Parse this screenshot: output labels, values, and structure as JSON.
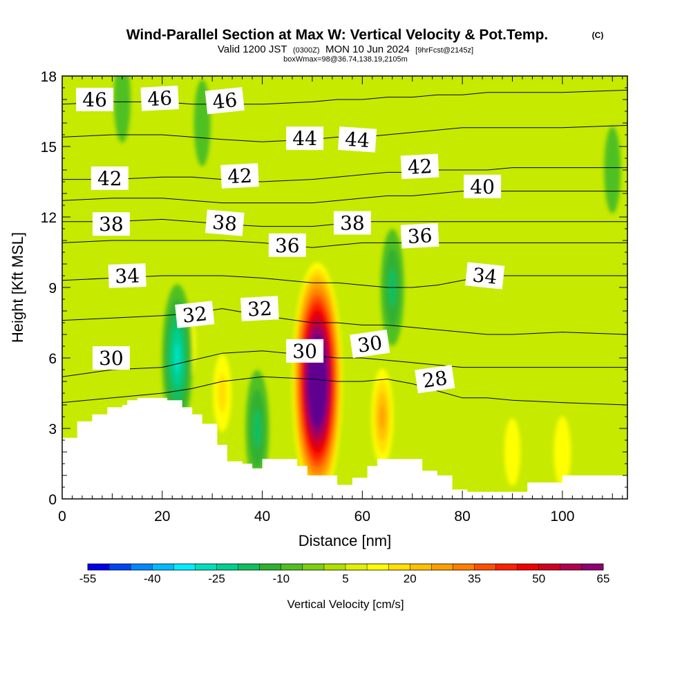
{
  "chart_data": {
    "type": "heatmap",
    "title": "Wind-Parallel Section at Max W: Vertical Velocity & Pot.Temp.",
    "copyright": "(C)",
    "subtitle": {
      "valid": "Valid 1200 JST",
      "utc": "(0300Z)",
      "date": "MON 10 Jun 2024",
      "forecast": "[9hrFcst@2145z]"
    },
    "box_info": "boxWmax=98@36.74,138.19,2105m",
    "xlabel": "Distance [nm]",
    "ylabel": "Height [Kft MSL]",
    "xlim": [
      0,
      113
    ],
    "ylim": [
      0,
      18
    ],
    "x_ticks": [
      "0",
      "20",
      "40",
      "60",
      "80",
      "100"
    ],
    "y_ticks": [
      "0",
      "3",
      "6",
      "9",
      "12",
      "15",
      "18"
    ],
    "colorbar": {
      "title": "Vertical Velocity [cm/s]",
      "tick_labels": [
        "-55",
        "-40",
        "-25",
        "-10",
        "5",
        "20",
        "35",
        "50",
        "65"
      ],
      "levels": [
        -55,
        -50,
        -45,
        -40,
        -35,
        -30,
        -25,
        -20,
        -15,
        -10,
        -5,
        0,
        5,
        10,
        15,
        20,
        25,
        30,
        35,
        40,
        45,
        50,
        55,
        60,
        65
      ],
      "colors": [
        "#0000e8",
        "#0044f5",
        "#0088ff",
        "#00bbff",
        "#00eeff",
        "#00e0c0",
        "#00d090",
        "#10c060",
        "#30b030",
        "#50c020",
        "#80d010",
        "#b0e000",
        "#e0f000",
        "#ffff00",
        "#ffe000",
        "#ffc000",
        "#ffa000",
        "#ff8000",
        "#ff5000",
        "#ff2000",
        "#f00000",
        "#d00020",
        "#b00050",
        "#900070",
        "#600090"
      ]
    },
    "vertical_velocity_features": [
      {
        "x": 51,
        "y": 5.0,
        "w_max": 98,
        "sign": "updraft"
      },
      {
        "x": 64,
        "y": 3.5,
        "w_max": 25,
        "sign": "updraft"
      },
      {
        "x": 70,
        "y": 4.5,
        "w_max": 8,
        "sign": "updraft"
      },
      {
        "x": 32,
        "y": 4.5,
        "w_max": 15,
        "sign": "updraft"
      },
      {
        "x": 90,
        "y": 2.0,
        "w_max": 10,
        "sign": "updraft"
      },
      {
        "x": 100,
        "y": 2.0,
        "w_max": 12,
        "sign": "updraft"
      },
      {
        "x": 25,
        "y": 6.5,
        "w_max": 12,
        "sign": "updraft"
      },
      {
        "x": 23,
        "y": 6.0,
        "w_max": -28,
        "sign": "downdraft"
      },
      {
        "x": 39,
        "y": 3.0,
        "w_max": -18,
        "sign": "downdraft"
      },
      {
        "x": 66,
        "y": 9.0,
        "w_max": -18,
        "sign": "downdraft"
      },
      {
        "x": 28,
        "y": 16.0,
        "w_max": -8,
        "sign": "downdraft"
      },
      {
        "x": 12,
        "y": 17.0,
        "w_max": -8,
        "sign": "downdraft"
      },
      {
        "x": 110,
        "y": 14.0,
        "w_max": -8,
        "sign": "downdraft"
      }
    ],
    "theta_contours": [
      {
        "label": "28",
        "x": [
          0,
          10,
          20,
          26,
          32,
          40,
          50,
          55,
          60,
          65,
          70,
          75,
          80,
          85,
          90,
          100,
          113
        ],
        "y": [
          4.1,
          4.3,
          4.5,
          4.7,
          5.0,
          5.2,
          5.1,
          5.0,
          5.0,
          5.1,
          4.9,
          4.6,
          4.3,
          4.3,
          4.2,
          4.1,
          4.0
        ]
      },
      {
        "label": "30",
        "x": [
          0,
          10,
          20,
          26,
          32,
          40,
          50,
          55,
          60,
          65,
          70,
          75,
          80,
          85,
          90,
          100,
          113
        ],
        "y": [
          5.2,
          5.5,
          5.6,
          5.9,
          6.2,
          6.3,
          6.1,
          6.0,
          6.0,
          5.9,
          5.8,
          5.7,
          5.6,
          5.6,
          5.6,
          5.6,
          5.6
        ]
      },
      {
        "label": "32",
        "x": [
          0,
          10,
          20,
          26,
          32,
          40,
          50,
          55,
          60,
          65,
          70,
          75,
          80,
          85,
          90,
          100,
          113
        ],
        "y": [
          7.6,
          7.7,
          7.8,
          7.9,
          8.1,
          7.8,
          7.5,
          7.5,
          7.4,
          7.4,
          7.3,
          7.2,
          7.1,
          7.0,
          7.0,
          7.1,
          7.0
        ]
      },
      {
        "label": "34",
        "x": [
          0,
          10,
          20,
          26,
          32,
          40,
          50,
          55,
          60,
          65,
          70,
          75,
          80,
          85,
          90,
          100,
          113
        ],
        "y": [
          9.3,
          9.4,
          9.5,
          9.5,
          9.5,
          9.4,
          9.2,
          9.2,
          9.1,
          9.0,
          9.0,
          9.1,
          9.3,
          9.5,
          9.5,
          9.5,
          9.5
        ]
      },
      {
        "label": "36",
        "x": [
          0,
          10,
          20,
          26,
          32,
          40,
          50,
          55,
          60,
          65,
          70,
          75,
          80,
          85,
          90,
          100,
          113
        ],
        "y": [
          10.9,
          11.0,
          11.0,
          11.0,
          11.0,
          10.9,
          10.7,
          10.8,
          10.9,
          10.9,
          10.9,
          10.9,
          10.9,
          10.9,
          10.9,
          10.9,
          10.9
        ]
      },
      {
        "label": "38",
        "x": [
          0,
          10,
          20,
          26,
          32,
          40,
          50,
          55,
          60,
          65,
          70,
          75,
          80,
          85,
          90,
          100,
          113
        ],
        "y": [
          11.8,
          11.8,
          11.9,
          11.8,
          11.7,
          11.6,
          11.6,
          11.7,
          11.8,
          11.8,
          11.8,
          11.8,
          11.8,
          11.8,
          11.8,
          11.8,
          11.8
        ]
      },
      {
        "label": "40",
        "x": [
          0,
          10,
          20,
          26,
          32,
          40,
          50,
          55,
          60,
          65,
          70,
          75,
          80,
          85,
          90,
          100,
          113
        ],
        "y": [
          12.7,
          12.8,
          12.8,
          12.7,
          12.6,
          12.6,
          12.6,
          12.7,
          12.8,
          12.9,
          12.9,
          13.0,
          13.1,
          13.1,
          13.1,
          13.1,
          13.1
        ]
      },
      {
        "label": "42",
        "x": [
          0,
          10,
          20,
          26,
          32,
          40,
          50,
          55,
          60,
          65,
          70,
          75,
          80,
          85,
          90,
          100,
          113
        ],
        "y": [
          13.6,
          13.6,
          13.7,
          13.7,
          13.6,
          13.5,
          13.6,
          13.7,
          13.8,
          13.9,
          13.9,
          14.0,
          14.0,
          14.0,
          14.1,
          14.1,
          14.1
        ]
      },
      {
        "label": "44",
        "x": [
          0,
          10,
          20,
          26,
          32,
          40,
          50,
          55,
          60,
          65,
          70,
          75,
          80,
          85,
          90,
          100,
          113
        ],
        "y": [
          15.4,
          15.5,
          15.5,
          15.4,
          15.3,
          15.2,
          15.3,
          15.4,
          15.4,
          15.5,
          15.6,
          15.7,
          15.8,
          15.8,
          15.8,
          15.8,
          15.9
        ]
      },
      {
        "label": "46",
        "x": [
          0,
          10,
          20,
          26,
          32,
          40,
          50,
          55,
          60,
          65,
          70,
          75,
          80,
          85,
          90,
          100,
          113
        ],
        "y": [
          16.8,
          16.9,
          16.9,
          16.8,
          16.8,
          16.8,
          16.9,
          17.0,
          17.0,
          17.1,
          17.1,
          17.2,
          17.2,
          17.3,
          17.3,
          17.3,
          17.4
        ]
      }
    ],
    "contour_labels": [
      {
        "text": "46",
        "x": 6.5,
        "y": 17.0,
        "rot": 0
      },
      {
        "text": "46",
        "x": 19.5,
        "y": 17.05,
        "rot": -3
      },
      {
        "text": "46",
        "x": 32.5,
        "y": 16.95,
        "rot": -6
      },
      {
        "text": "44",
        "x": 48.5,
        "y": 15.35,
        "rot": 0
      },
      {
        "text": "44",
        "x": 59.0,
        "y": 15.3,
        "rot": 4
      },
      {
        "text": "42",
        "x": 9.5,
        "y": 13.65,
        "rot": 0
      },
      {
        "text": "42",
        "x": 35.5,
        "y": 13.75,
        "rot": -3
      },
      {
        "text": "42",
        "x": 71.5,
        "y": 14.15,
        "rot": -3
      },
      {
        "text": "40",
        "x": 84.0,
        "y": 13.3,
        "rot": 0
      },
      {
        "text": "38",
        "x": 9.8,
        "y": 11.7,
        "rot": 0
      },
      {
        "text": "38",
        "x": 32.5,
        "y": 11.75,
        "rot": 5
      },
      {
        "text": "38",
        "x": 58.0,
        "y": 11.75,
        "rot": 0
      },
      {
        "text": "36",
        "x": 45.0,
        "y": 10.8,
        "rot": 0
      },
      {
        "text": "36",
        "x": 71.5,
        "y": 11.2,
        "rot": -3
      },
      {
        "text": "34",
        "x": 13.0,
        "y": 9.5,
        "rot": -2
      },
      {
        "text": "34",
        "x": 84.5,
        "y": 9.5,
        "rot": 6
      },
      {
        "text": "32",
        "x": 26.5,
        "y": 7.85,
        "rot": -6
      },
      {
        "text": "32",
        "x": 39.5,
        "y": 8.1,
        "rot": -3
      },
      {
        "text": "30",
        "x": 9.8,
        "y": 6.0,
        "rot": 0
      },
      {
        "text": "30",
        "x": 48.5,
        "y": 6.3,
        "rot": 0
      },
      {
        "text": "30",
        "x": 61.5,
        "y": 6.6,
        "rot": -8
      },
      {
        "text": "28",
        "x": 74.5,
        "y": 5.1,
        "rot": -8
      }
    ],
    "terrain": {
      "x": [
        0,
        3,
        3,
        6,
        6,
        9,
        9,
        12,
        12,
        13,
        13,
        15,
        15,
        18,
        18,
        21,
        21,
        24,
        24,
        26,
        26,
        28,
        28,
        31,
        31,
        33,
        33,
        36,
        36,
        38,
        38,
        40,
        40,
        43,
        43,
        45,
        45,
        47,
        47,
        49,
        49,
        52,
        52,
        55,
        55,
        58,
        58,
        61,
        61,
        63,
        63,
        66,
        66,
        69,
        69,
        72,
        72,
        75,
        75,
        78,
        78,
        81,
        81,
        84,
        84,
        87,
        87,
        90,
        90,
        93,
        93,
        96,
        96,
        100,
        100,
        103,
        103,
        106,
        106,
        110,
        110,
        113
      ],
      "y": [
        2.6,
        2.6,
        3.3,
        3.3,
        3.6,
        3.6,
        3.9,
        3.9,
        4.0,
        4.0,
        4.2,
        4.2,
        4.3,
        4.3,
        4.3,
        4.3,
        4.2,
        4.2,
        3.9,
        3.9,
        3.6,
        3.6,
        3.2,
        3.2,
        2.3,
        2.3,
        1.6,
        1.6,
        1.5,
        1.5,
        1.3,
        1.3,
        1.7,
        1.7,
        1.7,
        1.7,
        1.7,
        1.7,
        1.4,
        1.4,
        1.0,
        1.0,
        1.0,
        1.0,
        0.6,
        0.6,
        0.9,
        0.9,
        1.4,
        1.4,
        1.7,
        1.7,
        1.7,
        1.7,
        1.7,
        1.7,
        1.2,
        1.2,
        1.0,
        1.0,
        0.4,
        0.4,
        0.3,
        0.3,
        0.3,
        0.3,
        0.3,
        0.3,
        0.3,
        0.3,
        0.7,
        0.7,
        0.7,
        0.7,
        1.0,
        1.0,
        1.0,
        1.0,
        1.0,
        1.0,
        1.0,
        1.0
      ]
    }
  }
}
